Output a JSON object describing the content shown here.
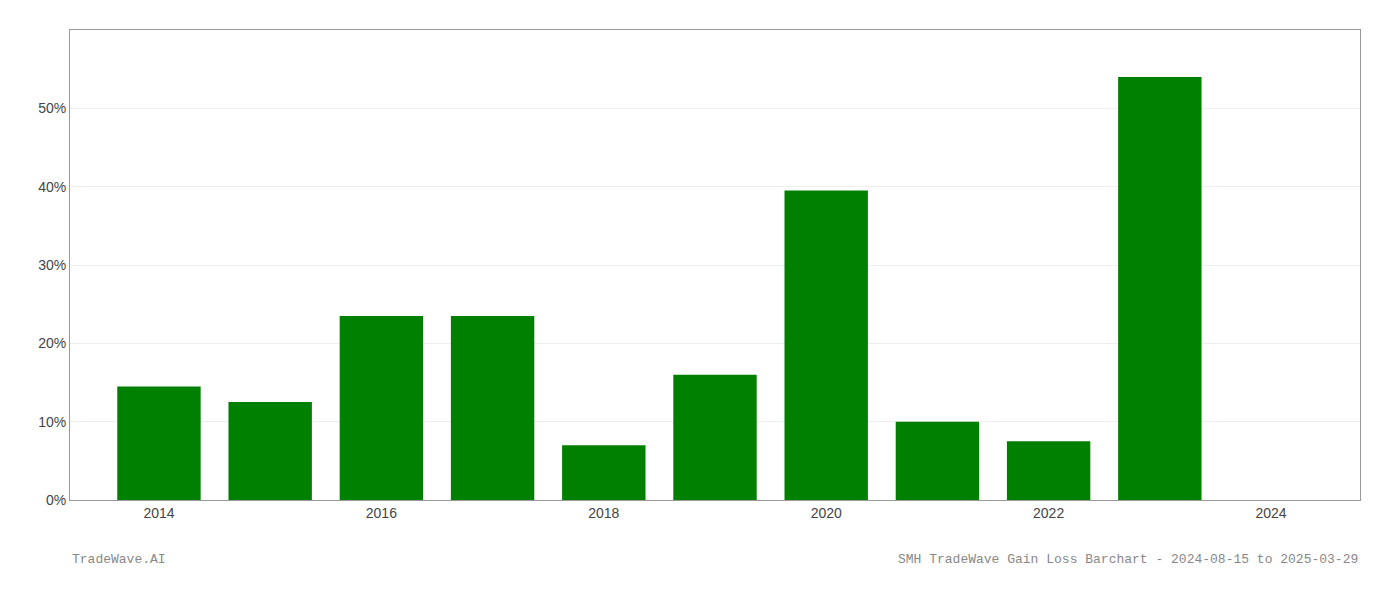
{
  "chart_data": {
    "type": "bar",
    "x": [
      2014,
      2015,
      2016,
      2017,
      2018,
      2019,
      2020,
      2021,
      2022,
      2023
    ],
    "values": [
      0.145,
      0.125,
      0.235,
      0.235,
      0.07,
      0.16,
      0.395,
      0.1,
      0.075,
      0.54
    ],
    "color": "#008000",
    "xlim": [
      2013.2,
      2024.8
    ],
    "xticks": [
      2014,
      2016,
      2018,
      2020,
      2022,
      2024
    ],
    "ylim": [
      0,
      0.6
    ],
    "yticks": [
      {
        "value": 0.0,
        "label": "0%"
      },
      {
        "value": 0.1,
        "label": "10%"
      },
      {
        "value": 0.2,
        "label": "20%"
      },
      {
        "value": 0.3,
        "label": "30%"
      },
      {
        "value": 0.4,
        "label": "40%"
      },
      {
        "value": 0.5,
        "label": "50%"
      }
    ],
    "grid": true,
    "annotations": [
      "TradeWave.AI",
      "SMH TradeWave Gain Loss Barchart - 2024-08-15 to 2025-03-29"
    ]
  }
}
